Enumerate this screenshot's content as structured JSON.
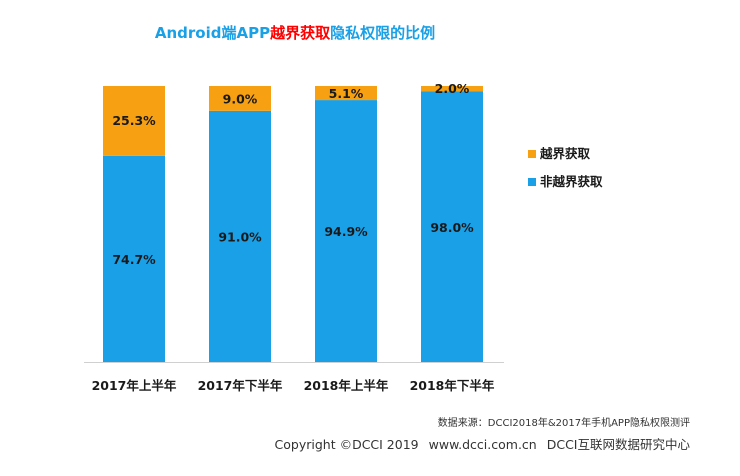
{
  "title": {
    "prefix": "Android端APP",
    "highlight": "越界获取",
    "suffix": "隐私权限的比例"
  },
  "colors": {
    "title_text": "#1aa0e6",
    "title_highlight": "#ff0000",
    "non_overreach": "#1aa0e6",
    "overreach": "#f7a012",
    "label_text": "#1a1a1a"
  },
  "chart_data": {
    "type": "bar",
    "stacked": true,
    "normalized_percent": true,
    "categories": [
      "2017年上半年",
      "2017年下半年",
      "2018年上半年",
      "2018年下半年"
    ],
    "series": [
      {
        "name": "非越界获取",
        "values": [
          74.7,
          91.0,
          94.9,
          98.0
        ],
        "labels": [
          "74.7%",
          "91.0%",
          "94.9%",
          "98.0%"
        ]
      },
      {
        "name": "越界获取",
        "values": [
          25.3,
          9.0,
          5.1,
          2.0
        ],
        "labels": [
          "25.3%",
          "9.0%",
          "5.1%",
          "2.0%"
        ]
      }
    ],
    "ylim": [
      0,
      100
    ],
    "grid": false,
    "legend_position": "right",
    "legend": [
      "越界获取",
      "非越界获取"
    ],
    "title": "Android端APP越界获取隐私权限的比例",
    "xlabel": "",
    "ylabel": ""
  },
  "footer": {
    "source": "数据来源：DCCI2018年&2017年手机APP隐私权限测评",
    "copyright": "Copyright ©DCCI 2019",
    "website": "www.dcci.com.cn",
    "org": "DCCI互联网数据研究中心"
  }
}
